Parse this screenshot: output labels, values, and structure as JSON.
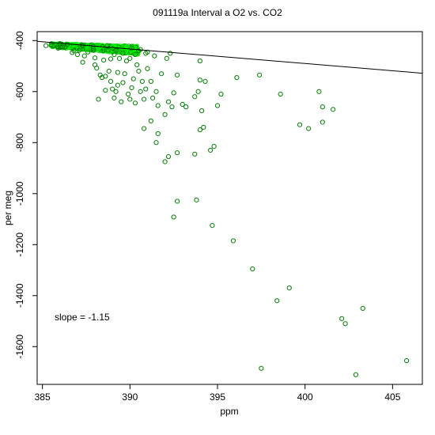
{
  "chart_data": {
    "type": "scatter",
    "title": "091119a   Interval a O2 vs. CO2",
    "xlabel": "ppm",
    "ylabel": "per meg",
    "xlim": [
      384.7,
      406.7
    ],
    "ylim": [
      -1748,
      -365
    ],
    "xticks": [
      385,
      390,
      395,
      400,
      405
    ],
    "yticks": [
      -400,
      -600,
      -800,
      -1000,
      -1200,
      -1400,
      -1600
    ],
    "grid": false,
    "annotation": "slope =  -1.15",
    "regression_line": {
      "slope": -1.15,
      "x": [
        384.7,
        406.7
      ],
      "y": [
        -403,
        -528
      ]
    },
    "colors": {
      "points": "#008000",
      "dense_points": "#00ee00",
      "line": "#000000"
    },
    "points": [
      [
        385.9,
        -430
      ],
      [
        386.3,
        -425
      ],
      [
        386.8,
        -440
      ],
      [
        387.0,
        -455
      ],
      [
        387.3,
        -485
      ],
      [
        387.6,
        -445
      ],
      [
        387.9,
        -430
      ],
      [
        388.0,
        -495
      ],
      [
        388.1,
        -508
      ],
      [
        388.3,
        -535
      ],
      [
        388.4,
        -545
      ],
      [
        388.6,
        -540
      ],
      [
        388.8,
        -520
      ],
      [
        388.9,
        -560
      ],
      [
        389.0,
        -590
      ],
      [
        389.1,
        -625
      ],
      [
        389.2,
        -600
      ],
      [
        389.3,
        -575
      ],
      [
        389.5,
        -640
      ],
      [
        389.6,
        -565
      ],
      [
        389.7,
        -530
      ],
      [
        389.9,
        -610
      ],
      [
        390.0,
        -630
      ],
      [
        390.1,
        -585
      ],
      [
        390.2,
        -550
      ],
      [
        390.3,
        -645
      ],
      [
        390.4,
        -495
      ],
      [
        390.5,
        -520
      ],
      [
        390.6,
        -600
      ],
      [
        390.7,
        -560
      ],
      [
        390.8,
        -630
      ],
      [
        390.9,
        -590
      ],
      [
        391.0,
        -510
      ],
      [
        391.2,
        -560
      ],
      [
        391.3,
        -625
      ],
      [
        391.5,
        -600
      ],
      [
        391.6,
        -655
      ],
      [
        391.8,
        -530
      ],
      [
        392.0,
        -690
      ],
      [
        392.1,
        -470
      ],
      [
        392.2,
        -640
      ],
      [
        392.3,
        -450
      ],
      [
        392.5,
        -605
      ],
      [
        392.7,
        -535
      ],
      [
        392.4,
        -660
      ],
      [
        393.0,
        -650
      ],
      [
        389.1,
        -455
      ],
      [
        389.4,
        -470
      ],
      [
        390.0,
        -470
      ],
      [
        390.3,
        -455
      ],
      [
        390.5,
        -440
      ],
      [
        390.9,
        -450
      ],
      [
        391.4,
        -460
      ],
      [
        389.8,
        -480
      ],
      [
        388.2,
        -630
      ],
      [
        388.6,
        -595
      ],
      [
        389.3,
        -525
      ],
      [
        391.2,
        -715
      ],
      [
        390.8,
        -745
      ],
      [
        391.6,
        -765
      ],
      [
        391.5,
        -800
      ],
      [
        392.0,
        -875
      ],
      [
        392.2,
        -855
      ],
      [
        392.7,
        -840
      ],
      [
        393.2,
        -660
      ],
      [
        393.7,
        -620
      ],
      [
        393.9,
        -600
      ],
      [
        394.0,
        -750
      ],
      [
        394.1,
        -675
      ],
      [
        394.2,
        -740
      ],
      [
        394.0,
        -480
      ],
      [
        394.0,
        -555
      ],
      [
        394.3,
        -560
      ],
      [
        394.6,
        -830
      ],
      [
        394.8,
        -815
      ],
      [
        393.7,
        -845
      ],
      [
        395.2,
        -610
      ],
      [
        395.0,
        -655
      ],
      [
        396.1,
        -545
      ],
      [
        397.4,
        -535
      ],
      [
        398.6,
        -610
      ],
      [
        399.7,
        -730
      ],
      [
        400.2,
        -745
      ],
      [
        400.8,
        -600
      ],
      [
        401.0,
        -660
      ],
      [
        401.0,
        -720
      ],
      [
        401.6,
        -670
      ],
      [
        392.7,
        -1030
      ],
      [
        393.8,
        -1025
      ],
      [
        392.5,
        -1092
      ],
      [
        394.7,
        -1125
      ],
      [
        395.9,
        -1185
      ],
      [
        397.0,
        -1295
      ],
      [
        398.4,
        -1420
      ],
      [
        399.1,
        -1370
      ],
      [
        397.5,
        -1685
      ],
      [
        402.1,
        -1490
      ],
      [
        402.3,
        -1510
      ],
      [
        403.3,
        -1450
      ],
      [
        402.9,
        -1710
      ],
      [
        405.8,
        -1655
      ],
      [
        385.2,
        -420
      ],
      [
        385.5,
        -418
      ],
      [
        386.0,
        -412
      ],
      [
        386.4,
        -415
      ],
      [
        386.7,
        -447
      ],
      [
        387.1,
        -438
      ],
      [
        387.4,
        -460
      ],
      [
        388.0,
        -468
      ],
      [
        388.5,
        -477
      ],
      [
        388.9,
        -472
      ],
      [
        389.2,
        -440
      ],
      [
        389.6,
        -450
      ],
      [
        390.1,
        -430
      ],
      [
        390.6,
        -435
      ],
      [
        391.0,
        -445
      ]
    ],
    "dense_cluster": {
      "x_range": [
        385.5,
        390.5
      ],
      "y_center_at_start": -418,
      "y_center_at_end": -438
    }
  }
}
